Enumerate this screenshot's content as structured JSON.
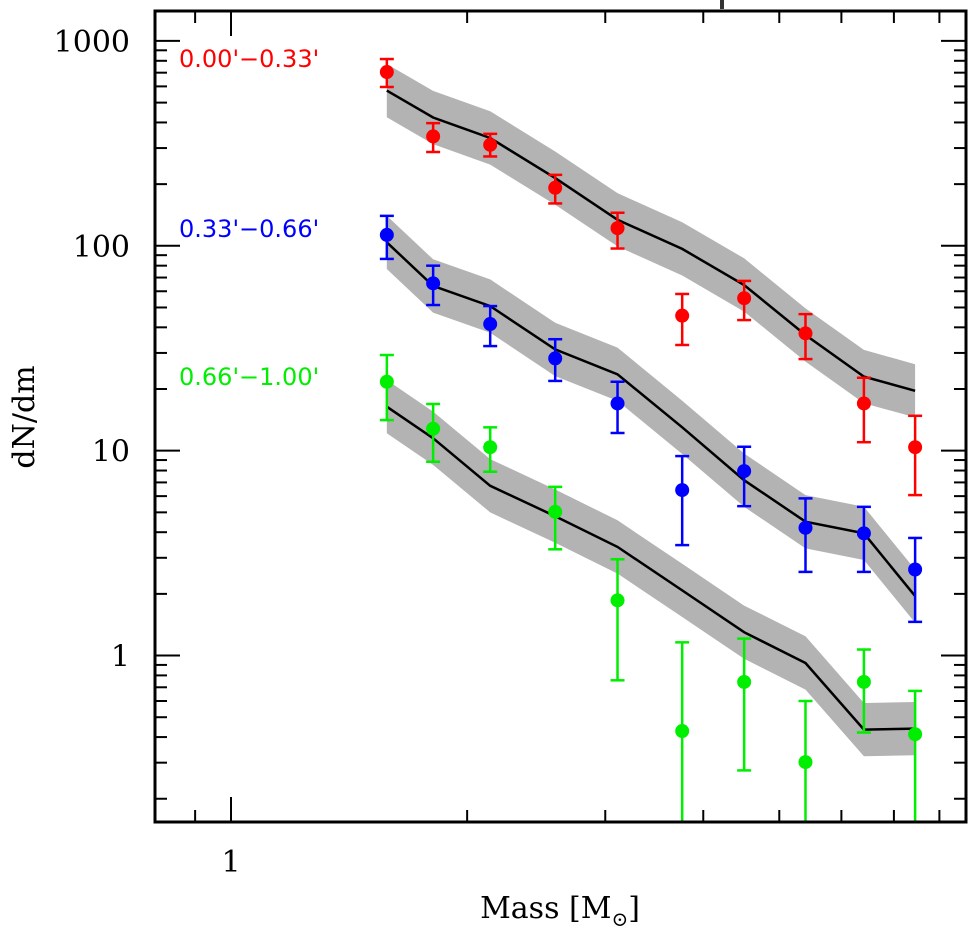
{
  "chart_data": {
    "type": "scatter",
    "title": "",
    "title_fragment_visible": true,
    "xlabel": "Mass [M⊙]",
    "xlabel_main": "Mass [M",
    "xlabel_sub": "⊙",
    "xlabel_close": "]",
    "ylabel": "dN/dm",
    "xscale": "log",
    "yscale": "log",
    "xlim": [
      0.8,
      8.65
    ],
    "ylim": [
      0.154,
      1400
    ],
    "x_ticks_major": [
      {
        "value": 1,
        "label": "1"
      }
    ],
    "x_ticks_minor": [
      0.8,
      0.9,
      2,
      3,
      4,
      5,
      6,
      7,
      8
    ],
    "y_ticks_major": [
      {
        "value": 1,
        "label": "1"
      },
      {
        "value": 10,
        "label": "10"
      },
      {
        "value": 100,
        "label": "100"
      },
      {
        "value": 1000,
        "label": "1000"
      }
    ],
    "grid": false,
    "legend": "inline-left",
    "x": [
      1.58,
      1.81,
      2.14,
      2.59,
      3.11,
      3.76,
      4.51,
      5.4,
      6.41,
      7.45
    ],
    "model_band_halfwidth_dex": 0.13,
    "series": [
      {
        "name": "0.00'−0.33'",
        "color": "#ff0000",
        "values": [
          705,
          342,
          311,
          192,
          122,
          45.6,
          55.5,
          37.4,
          17.0,
          10.4
        ],
        "err_upper": [
          816,
          397,
          352,
          222,
          145,
          58.2,
          67.4,
          46.4,
          22.7,
          14.8
        ],
        "err_lower": [
          596,
          287,
          273,
          161,
          97,
          32.8,
          43.4,
          28.0,
          11.0,
          6.07
        ],
        "model": [
          572,
          423,
          336,
          214,
          134,
          96.6,
          64.4,
          36.7,
          23.0,
          19.6
        ]
      },
      {
        "name": "0.33'−0.66'",
        "color": "#0000ff",
        "values": [
          113,
          65.6,
          41.5,
          28.2,
          17.0,
          6.42,
          7.95,
          4.2,
          3.95,
          2.63
        ],
        "err_upper": [
          140,
          80,
          50.8,
          35.0,
          21.7,
          9.41,
          10.45,
          5.85,
          5.32,
          3.75
        ],
        "err_lower": [
          86.3,
          51.4,
          32.4,
          21.9,
          12.2,
          3.46,
          5.36,
          2.56,
          2.56,
          1.46
        ],
        "model": [
          104,
          63.7,
          50.8,
          31.2,
          23.6,
          13.0,
          7.18,
          4.5,
          3.95,
          1.95
        ]
      },
      {
        "name": "0.66'−1.00'",
        "color": "#00ee00",
        "values": [
          21.7,
          12.8,
          10.4,
          5.03,
          1.86,
          0.428,
          0.743,
          0.302,
          0.743,
          0.413
        ],
        "err_upper": [
          29.3,
          16.9,
          13.0,
          6.66,
          2.95,
          1.16,
          1.21,
          0.6,
          1.07,
          0.672
        ],
        "err_lower": [
          14.1,
          8.83,
          7.89,
          3.3,
          0.757,
          0.01,
          0.275,
          0.01,
          0.421,
          0.01
        ],
        "model": [
          16.4,
          11.5,
          6.74,
          4.79,
          3.39,
          2.08,
          1.3,
          0.92,
          0.435,
          0.44
        ]
      }
    ]
  }
}
